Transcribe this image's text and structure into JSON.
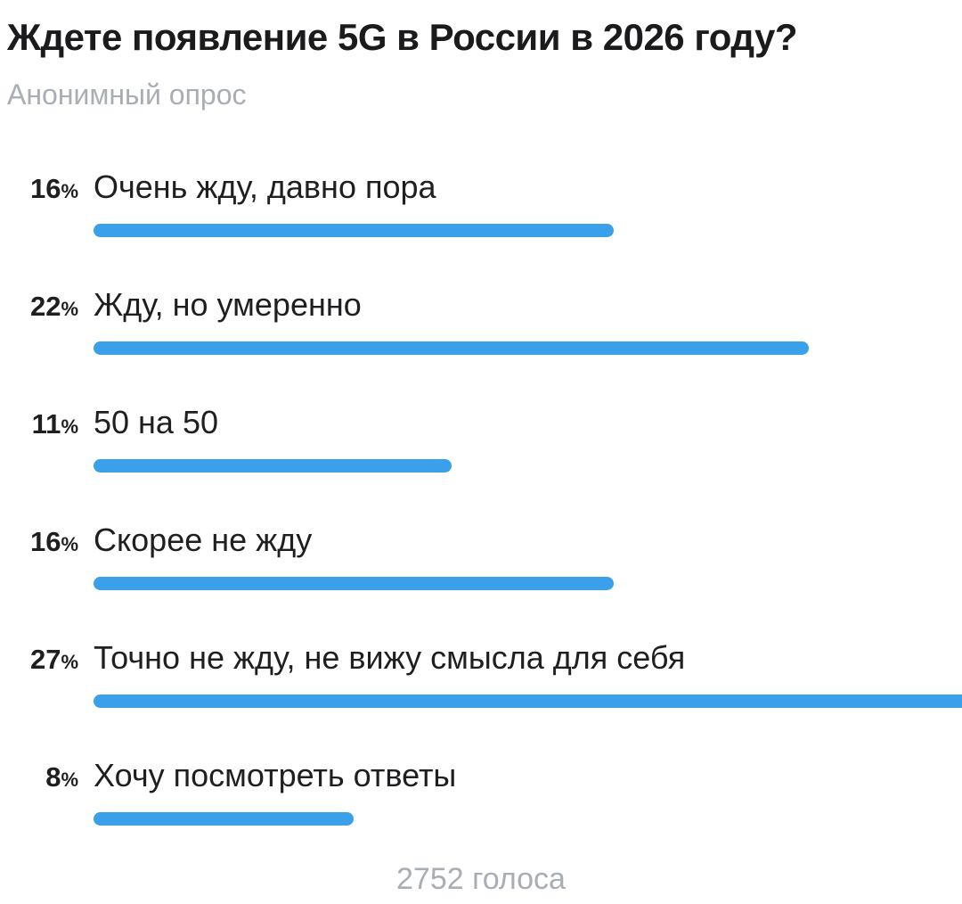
{
  "poll": {
    "question": "Ждете появление 5G в России в 2026 году?",
    "type_label": "Анонимный опрос",
    "percent_sign": "%",
    "votes_label": "2752 голоса",
    "options": [
      {
        "percent_label": "16",
        "label": "Очень жду, давно пора"
      },
      {
        "percent_label": "22",
        "label": "Жду, но умеренно"
      },
      {
        "percent_label": "11",
        "label": "50 на 50"
      },
      {
        "percent_label": "16",
        "label": "Скорее не жду"
      },
      {
        "percent_label": "27",
        "label": "Точно не жду, не вижу смысла для себя"
      },
      {
        "percent_label": "8",
        "label": "Хочу посмотреть ответы"
      }
    ]
  },
  "colors": {
    "bar": "#3aa0e9",
    "text": "#1f1f21",
    "muted_text": "#a9aeb4",
    "background": "#ffffff"
  },
  "chart_data": {
    "type": "bar",
    "orientation": "horizontal",
    "title": "Ждете появление 5G в России в 2026 году?",
    "subtitle": "Анонимный опрос",
    "categories": [
      "Очень жду, давно пора",
      "Жду, но умеренно",
      "50 на 50",
      "Скорее не жду",
      "Точно не жду, не вижу смысла для себя",
      "Хочу посмотреть ответы"
    ],
    "values": [
      16,
      22,
      11,
      16,
      27,
      8
    ],
    "unit": "percent",
    "total_votes": 2752,
    "votes_label": "2752 голоса",
    "bar_color": "#3aa0e9",
    "pixels_per_percent": 36.5,
    "xlim": [
      0,
      100
    ],
    "grid": false,
    "legend": false
  }
}
